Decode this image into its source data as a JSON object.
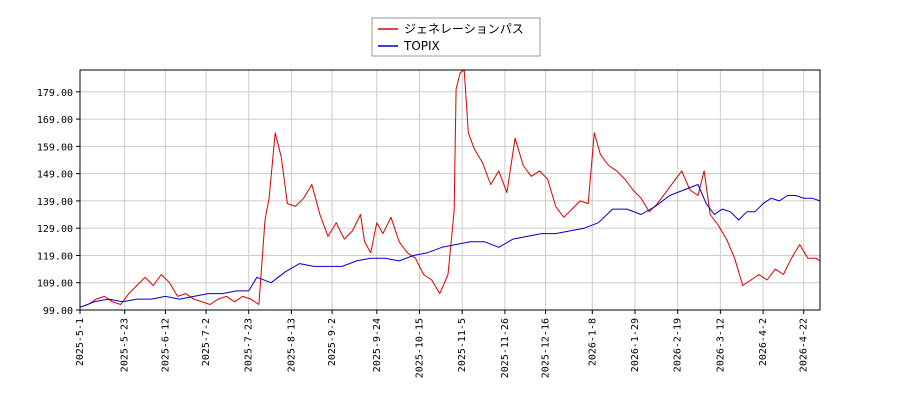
{
  "chart_data": {
    "type": "line",
    "title": "",
    "xlabel": "",
    "ylabel": "",
    "grid": true,
    "legend": "top-center",
    "x_start": "2025-05-01",
    "x_end": "2026-04-30",
    "ylim": [
      99.0,
      187.0
    ],
    "y_ticks": [
      "99.00",
      "109.00",
      "119.00",
      "129.00",
      "139.00",
      "149.00",
      "159.00",
      "169.00",
      "179.00"
    ],
    "x_ticks": [
      "2025-5-1",
      "2025-5-23",
      "2025-6-12",
      "2025-7-2",
      "2025-7-23",
      "2025-8-13",
      "2025-9-2",
      "2025-9-24",
      "2025-10-15",
      "2025-11-5",
      "2025-11-26",
      "2025-12-16",
      "2026-1-8",
      "2026-1-29",
      "2026-2-19",
      "2026-3-12",
      "2026-4-2",
      "2026-4-22"
    ],
    "series": [
      {
        "name": "ジェネレーションパス",
        "color": "#dd0000",
        "points": [
          [
            "2025-05-01",
            100
          ],
          [
            "2025-05-05",
            101
          ],
          [
            "2025-05-09",
            103
          ],
          [
            "2025-05-13",
            104
          ],
          [
            "2025-05-17",
            102
          ],
          [
            "2025-05-21",
            101
          ],
          [
            "2025-05-25",
            105
          ],
          [
            "2025-05-29",
            108
          ],
          [
            "2025-06-02",
            111
          ],
          [
            "2025-06-06",
            108
          ],
          [
            "2025-06-10",
            112
          ],
          [
            "2025-06-14",
            109
          ],
          [
            "2025-06-18",
            104
          ],
          [
            "2025-06-22",
            105
          ],
          [
            "2025-06-26",
            103
          ],
          [
            "2025-06-30",
            102
          ],
          [
            "2025-07-04",
            101
          ],
          [
            "2025-07-08",
            103
          ],
          [
            "2025-07-12",
            104
          ],
          [
            "2025-07-16",
            102
          ],
          [
            "2025-07-20",
            104
          ],
          [
            "2025-07-24",
            103
          ],
          [
            "2025-07-28",
            101
          ],
          [
            "2025-07-31",
            132
          ],
          [
            "2025-08-02",
            140
          ],
          [
            "2025-08-05",
            164
          ],
          [
            "2025-08-08",
            155
          ],
          [
            "2025-08-11",
            138
          ],
          [
            "2025-08-15",
            137
          ],
          [
            "2025-08-19",
            140
          ],
          [
            "2025-08-23",
            145
          ],
          [
            "2025-08-27",
            134
          ],
          [
            "2025-08-31",
            126
          ],
          [
            "2025-09-04",
            131
          ],
          [
            "2025-09-08",
            125
          ],
          [
            "2025-09-12",
            128
          ],
          [
            "2025-09-16",
            134
          ],
          [
            "2025-09-18",
            124
          ],
          [
            "2025-09-21",
            120
          ],
          [
            "2025-09-24",
            131
          ],
          [
            "2025-09-27",
            127
          ],
          [
            "2025-10-01",
            133
          ],
          [
            "2025-10-05",
            124
          ],
          [
            "2025-10-09",
            120
          ],
          [
            "2025-10-13",
            118
          ],
          [
            "2025-10-17",
            112
          ],
          [
            "2025-10-21",
            110
          ],
          [
            "2025-10-25",
            105
          ],
          [
            "2025-10-29",
            112
          ],
          [
            "2025-11-01",
            135
          ],
          [
            "2025-11-02",
            180
          ],
          [
            "2025-11-04",
            186
          ],
          [
            "2025-11-06",
            187
          ],
          [
            "2025-11-08",
            164
          ],
          [
            "2025-11-11",
            158
          ],
          [
            "2025-11-15",
            153
          ],
          [
            "2025-11-19",
            145
          ],
          [
            "2025-11-23",
            150
          ],
          [
            "2025-11-27",
            142
          ],
          [
            "2025-12-01",
            162
          ],
          [
            "2025-12-05",
            152
          ],
          [
            "2025-12-09",
            148
          ],
          [
            "2025-12-13",
            150
          ],
          [
            "2025-12-17",
            147
          ],
          [
            "2025-12-21",
            137
          ],
          [
            "2025-12-25",
            133
          ],
          [
            "2025-12-29",
            136
          ],
          [
            "2026-01-02",
            139
          ],
          [
            "2026-01-06",
            138
          ],
          [
            "2026-01-09",
            164
          ],
          [
            "2026-01-12",
            156
          ],
          [
            "2026-01-16",
            152
          ],
          [
            "2026-01-20",
            150
          ],
          [
            "2026-01-24",
            147
          ],
          [
            "2026-01-28",
            143
          ],
          [
            "2026-02-01",
            140
          ],
          [
            "2026-02-05",
            135
          ],
          [
            "2026-02-09",
            138
          ],
          [
            "2026-02-13",
            142
          ],
          [
            "2026-02-17",
            146
          ],
          [
            "2026-02-21",
            150
          ],
          [
            "2026-02-25",
            143
          ],
          [
            "2026-03-01",
            141
          ],
          [
            "2026-03-04",
            150
          ],
          [
            "2026-03-07",
            134
          ],
          [
            "2026-03-11",
            130
          ],
          [
            "2026-03-15",
            125
          ],
          [
            "2026-03-19",
            118
          ],
          [
            "2026-03-23",
            108
          ],
          [
            "2026-03-27",
            110
          ],
          [
            "2026-03-31",
            112
          ],
          [
            "2026-04-04",
            110
          ],
          [
            "2026-04-08",
            114
          ],
          [
            "2026-04-12",
            112
          ],
          [
            "2026-04-16",
            118
          ],
          [
            "2026-04-20",
            123
          ],
          [
            "2026-04-24",
            118
          ],
          [
            "2026-04-28",
            118
          ],
          [
            "2026-04-30",
            117
          ]
        ]
      },
      {
        "name": "TOPIX",
        "color": "#0000cc",
        "points": [
          [
            "2025-05-01",
            100
          ],
          [
            "2025-05-08",
            102
          ],
          [
            "2025-05-15",
            103
          ],
          [
            "2025-05-22",
            102
          ],
          [
            "2025-05-29",
            103
          ],
          [
            "2025-06-05",
            103
          ],
          [
            "2025-06-12",
            104
          ],
          [
            "2025-06-19",
            103
          ],
          [
            "2025-06-26",
            104
          ],
          [
            "2025-07-03",
            105
          ],
          [
            "2025-07-10",
            105
          ],
          [
            "2025-07-17",
            106
          ],
          [
            "2025-07-23",
            106
          ],
          [
            "2025-07-27",
            111
          ],
          [
            "2025-08-03",
            109
          ],
          [
            "2025-08-10",
            113
          ],
          [
            "2025-08-17",
            116
          ],
          [
            "2025-08-24",
            115
          ],
          [
            "2025-08-31",
            115
          ],
          [
            "2025-09-07",
            115
          ],
          [
            "2025-09-14",
            117
          ],
          [
            "2025-09-21",
            118
          ],
          [
            "2025-09-28",
            118
          ],
          [
            "2025-10-05",
            117
          ],
          [
            "2025-10-12",
            119
          ],
          [
            "2025-10-19",
            120
          ],
          [
            "2025-10-26",
            122
          ],
          [
            "2025-11-02",
            123
          ],
          [
            "2025-11-09",
            124
          ],
          [
            "2025-11-16",
            124
          ],
          [
            "2025-11-23",
            122
          ],
          [
            "2025-11-30",
            125
          ],
          [
            "2025-12-07",
            126
          ],
          [
            "2025-12-14",
            127
          ],
          [
            "2025-12-21",
            127
          ],
          [
            "2025-12-28",
            128
          ],
          [
            "2026-01-04",
            129
          ],
          [
            "2026-01-11",
            131
          ],
          [
            "2026-01-18",
            136
          ],
          [
            "2026-01-25",
            136
          ],
          [
            "2026-02-01",
            134
          ],
          [
            "2026-02-08",
            137
          ],
          [
            "2026-02-15",
            141
          ],
          [
            "2026-02-22",
            143
          ],
          [
            "2026-03-01",
            145
          ],
          [
            "2026-03-05",
            138
          ],
          [
            "2026-03-09",
            134
          ],
          [
            "2026-03-13",
            136
          ],
          [
            "2026-03-17",
            135
          ],
          [
            "2026-03-21",
            132
          ],
          [
            "2026-03-25",
            135
          ],
          [
            "2026-03-29",
            135
          ],
          [
            "2026-04-02",
            138
          ],
          [
            "2026-04-06",
            140
          ],
          [
            "2026-04-10",
            139
          ],
          [
            "2026-04-14",
            141
          ],
          [
            "2026-04-18",
            141
          ],
          [
            "2026-04-22",
            140
          ],
          [
            "2026-04-26",
            140
          ],
          [
            "2026-04-30",
            139
          ]
        ]
      }
    ]
  }
}
